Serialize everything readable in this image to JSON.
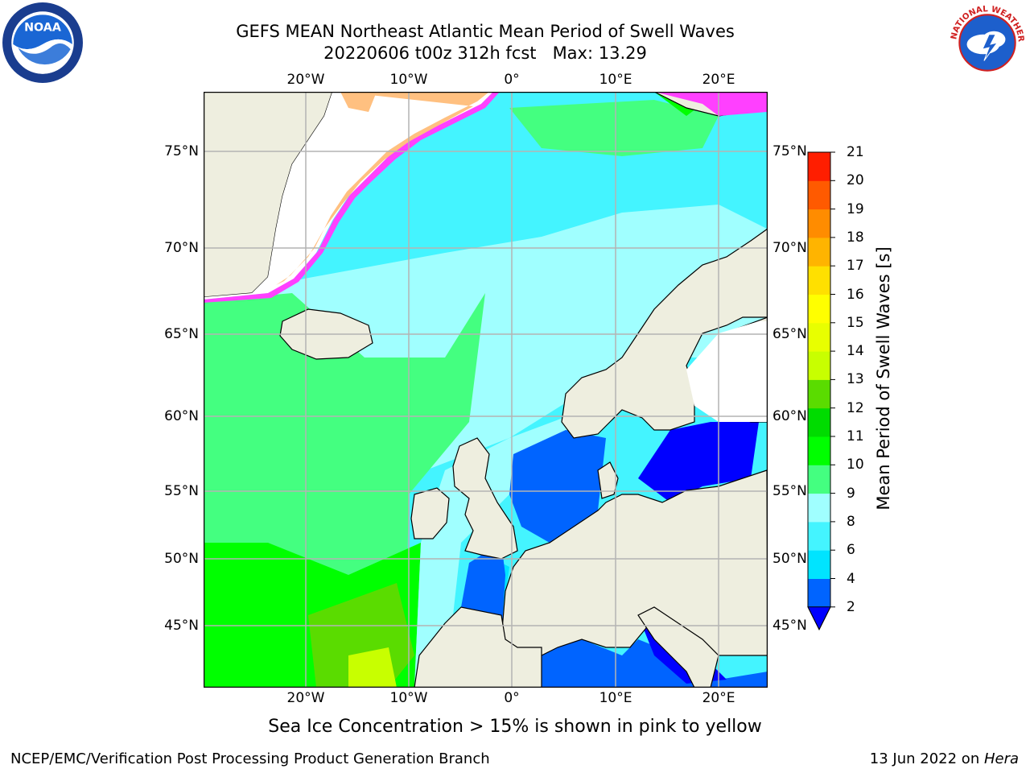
{
  "title": {
    "line1": "GEFS MEAN Northeast Atlantic Mean Period of Swell Waves",
    "line2": "20220606 t00z 312h fcst   Max: 13.29"
  },
  "logos": {
    "left": "noaa-logo",
    "right": "national-weather-service-logo",
    "left_text": "NOAA",
    "right_text": "NATIONAL WEATHER SERVICE"
  },
  "map": {
    "projection": "cylindrical",
    "lon_range": [
      -30,
      25
    ],
    "lat_range": [
      41,
      78
    ],
    "lon_labels": [
      "20°W",
      "10°W",
      "0°",
      "10°E",
      "20°E"
    ],
    "lat_labels": [
      "75°N",
      "70°N",
      "65°N",
      "60°N",
      "55°N",
      "50°N",
      "45°N"
    ],
    "colors": {
      "land": "#eeeedf",
      "coastline": "#000000",
      "grid": "#b4b4b4",
      "sea_ice": [
        "#ff40ff",
        "#ff80c0",
        "#ffc080",
        "#ffff40"
      ]
    }
  },
  "colorbar": {
    "label": "Mean Period of Swell Waves [s]",
    "ticks": [
      "2",
      "4",
      "6",
      "8",
      "9",
      "10",
      "11",
      "12",
      "13",
      "14",
      "15",
      "16",
      "17",
      "18",
      "19",
      "20",
      "21"
    ],
    "extend": "min",
    "colors": [
      "#0064ff",
      "#00e4ff",
      "#44f4ff",
      "#a0ffff",
      "#44ff80",
      "#00ff00",
      "#00dc00",
      "#5adc00",
      "#c8ff00",
      "#e8ff00",
      "#ffff00",
      "#ffe000",
      "#ffb400",
      "#ff8c00",
      "#ff5a00",
      "#ff1e00"
    ],
    "under_color": "#0000ff"
  },
  "note": "Sea Ice Concentration > 15% is shown in pink to yellow",
  "footer": {
    "left": "NCEP/EMC/Verification Post Processing Product Generation Branch",
    "right_date": "13 Jun 2022 on ",
    "right_machine": "Hera"
  }
}
